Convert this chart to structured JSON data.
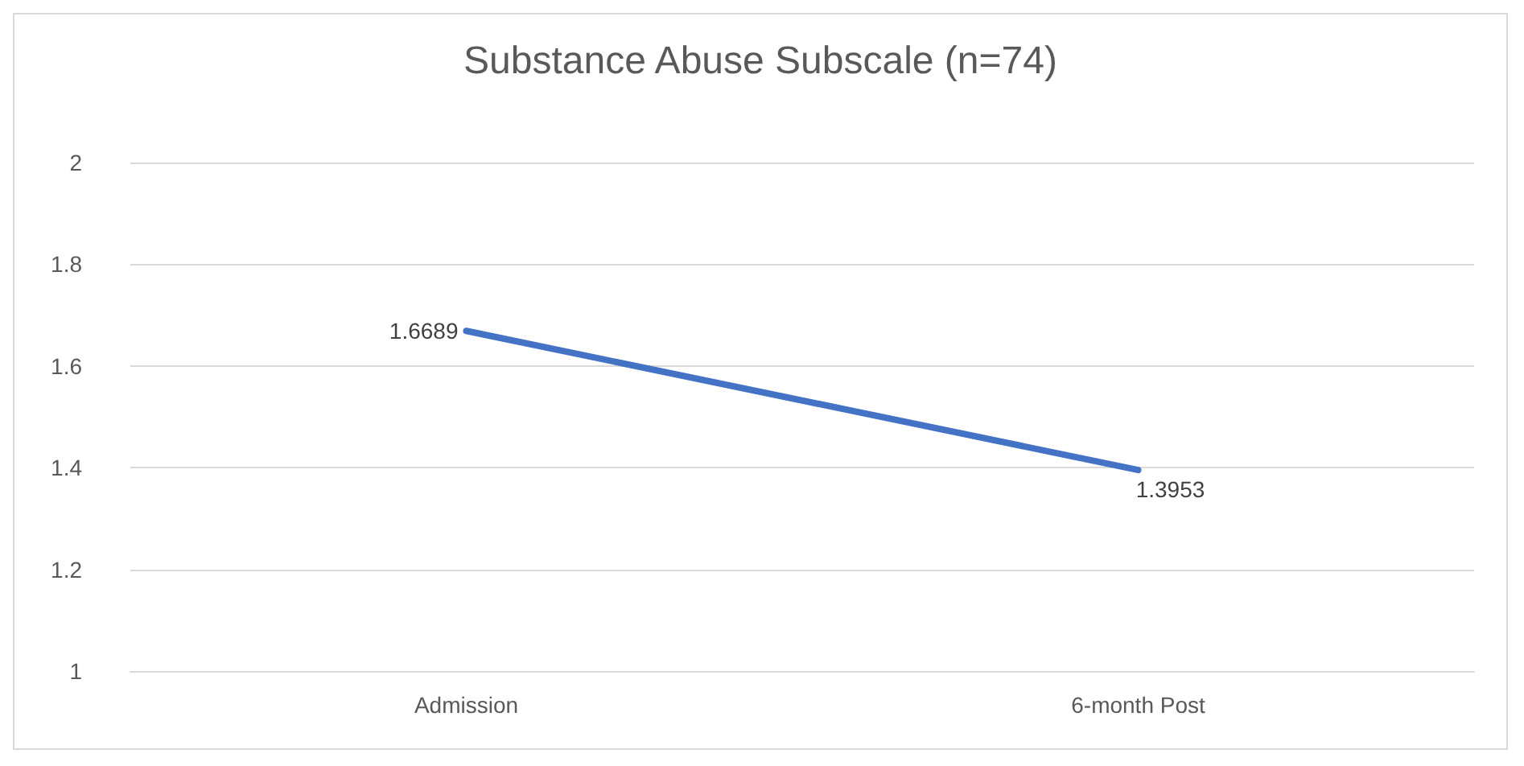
{
  "chart_data": {
    "type": "line",
    "title": "Substance Abuse Subscale (n=74)",
    "categories": [
      "Admission",
      "6-month Post"
    ],
    "series": [
      {
        "color": "#4472c4",
        "values": [
          1.6689,
          1.3953
        ]
      }
    ],
    "ylim": [
      1,
      2
    ],
    "yticks": [
      1,
      1.2,
      1.4,
      1.6,
      1.8,
      2
    ],
    "grid": "y",
    "data_labels": true,
    "marker": "none"
  }
}
